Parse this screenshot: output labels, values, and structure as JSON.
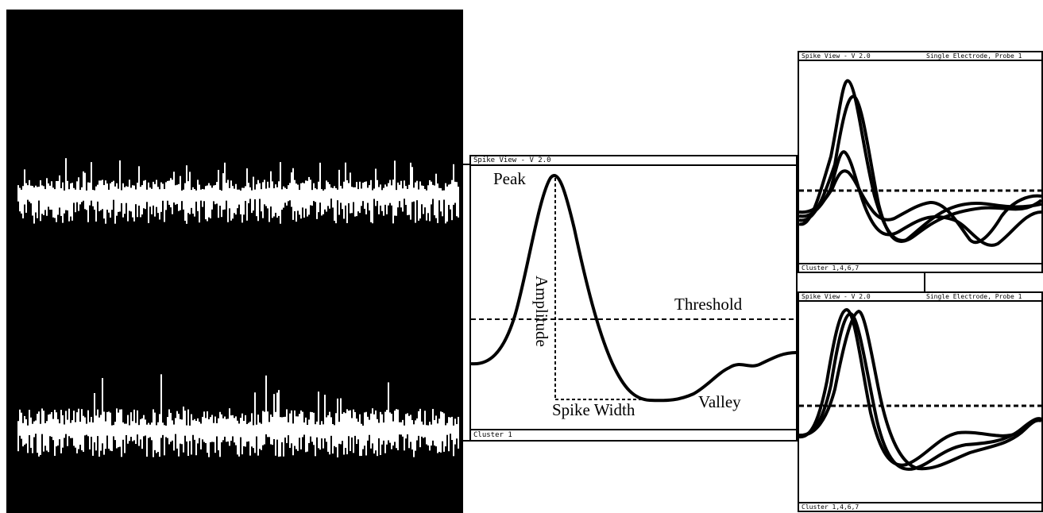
{
  "main_window": {
    "title": "Spike View - V 2.0",
    "status": "Cluster 1",
    "labels": {
      "peak": "Peak",
      "amplitude": "Amplitude",
      "threshold": "Threshold",
      "spike_width": "Spike Width",
      "valley": "Valley"
    }
  },
  "top_window": {
    "title": "Spike View - V 2.0",
    "subtitle": "Single Electrode, Probe 1",
    "status": "Cluster 1,4,6,7"
  },
  "bottom_window": {
    "title": "Spike View - V 2.0",
    "subtitle": "Single Electrode, Probe 1",
    "status": "Cluster 1,4,6,7"
  },
  "colors": {
    "background": "#ffffff",
    "ink": "#000000",
    "scope_bg": "#000000",
    "trace": "#ffffff"
  }
}
